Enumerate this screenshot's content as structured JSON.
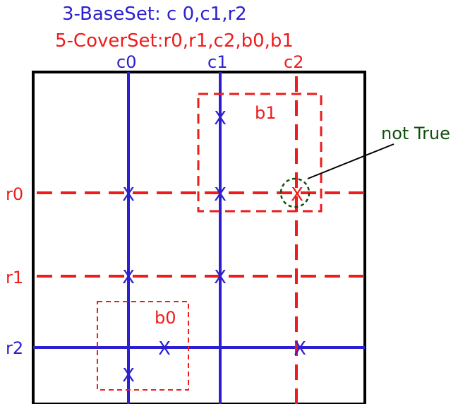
{
  "titles": {
    "baseset": "3-BaseSet: c 0,c1,r2",
    "coverset": "5-CoverSet:r0,r1,c2,b0,b1"
  },
  "columns": {
    "c0": "c0",
    "c1": "c1",
    "c2": "c2"
  },
  "rows": {
    "r0": "r0",
    "r1": "r1",
    "r2": "r2"
  },
  "boxes": {
    "b0": "b0",
    "b1": "b1"
  },
  "annotation": "not True",
  "candidate_mark": "X",
  "colors": {
    "base": "#2b1fd0",
    "cover": "#ee1c1c",
    "annotation": "#0e4f0e",
    "frame": "#000000"
  }
}
